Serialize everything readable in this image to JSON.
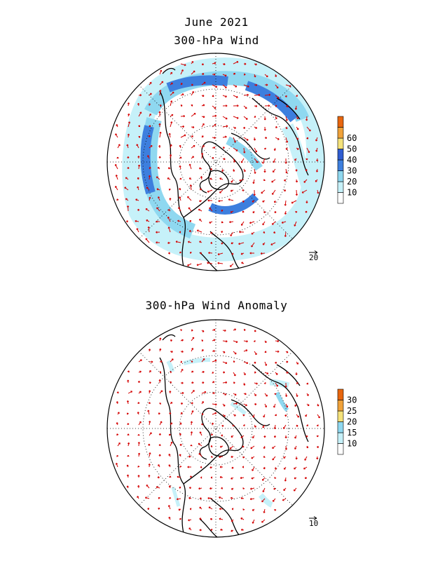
{
  "header": {
    "month_title": "June 2021",
    "panel1_title": "300-hPa Wind",
    "panel2_title": "300-hPa Wind Anomaly"
  },
  "panel1": {
    "colorbar": {
      "ticks": [
        "10",
        "20",
        "30",
        "40",
        "50",
        "60"
      ],
      "colors": [
        "#ffffff",
        "#c6f1f9",
        "#8fd8f0",
        "#3d7fde",
        "#2f5dd1",
        "#f5e27a",
        "#f0a23a",
        "#e8660e"
      ]
    },
    "reference_vector_label": "20"
  },
  "panel2": {
    "colorbar": {
      "ticks": [
        "10",
        "15",
        "20",
        "25",
        "30"
      ],
      "colors": [
        "#ffffff",
        "#c6f1f9",
        "#8fd8f0",
        "#f5e27a",
        "#f0a23a",
        "#e8660e"
      ]
    },
    "reference_vector_label": "10"
  },
  "style": {
    "arrow_color": "#d40000",
    "coast_color": "#000000",
    "grid_color": "#000000"
  }
}
